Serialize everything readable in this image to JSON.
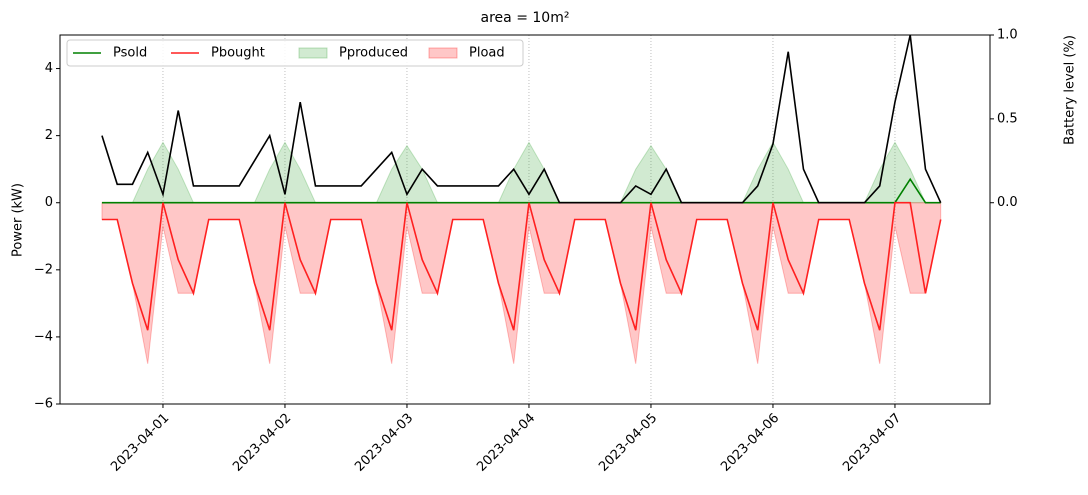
{
  "chart_data": {
    "type": "line",
    "title": "area = 10m²",
    "ylabel": "Power (kW)",
    "y2label": "Battery level (%)",
    "x": [
      -0.5,
      -0.375,
      -0.25,
      -0.125,
      0,
      0.125,
      0.25,
      0.375,
      0.5,
      0.625,
      0.75,
      0.875,
      1,
      1.125,
      1.25,
      1.375,
      1.5,
      1.625,
      1.75,
      1.875,
      2,
      2.125,
      2.25,
      2.375,
      2.5,
      2.625,
      2.75,
      2.875,
      3,
      3.125,
      3.25,
      3.375,
      3.5,
      3.625,
      3.75,
      3.875,
      4,
      4.125,
      4.25,
      4.375,
      4.5,
      4.625,
      4.75,
      4.875,
      5,
      5.125,
      5.25,
      5.375,
      5.5,
      5.625,
      5.75,
      5.875,
      6,
      6.125,
      6.25,
      6.375
    ],
    "xlim": [
      -0.844,
      6.779
    ],
    "xticks": [
      {
        "value": 0,
        "label": "2023-04-01"
      },
      {
        "value": 1,
        "label": "2023-04-02"
      },
      {
        "value": 2,
        "label": "2023-04-03"
      },
      {
        "value": 3,
        "label": "2023-04-04"
      },
      {
        "value": 4,
        "label": "2023-04-05"
      },
      {
        "value": 5,
        "label": "2023-04-06"
      },
      {
        "value": 6,
        "label": "2023-04-07"
      }
    ],
    "xgrid": true,
    "ylim": [
      -6,
      5
    ],
    "yticks": [
      {
        "value": -6,
        "label": "−6"
      },
      {
        "value": -4,
        "label": "−4"
      },
      {
        "value": -2,
        "label": "−2"
      },
      0,
      2,
      4
    ],
    "y2lim": [
      -1.2,
      1.0
    ],
    "y2ticks": [
      {
        "value": 0,
        "label": "0.0"
      },
      {
        "value": 0.5,
        "label": "0.5"
      },
      {
        "value": 1,
        "label": "1.0"
      }
    ],
    "legend": "upper left",
    "series": [
      {
        "name": "Psold",
        "style": "line",
        "color": "#008000",
        "values": [
          0,
          0,
          0,
          0,
          0,
          0,
          0,
          0,
          0,
          0,
          0,
          0,
          0,
          0,
          0,
          0,
          0,
          0,
          0,
          0,
          0,
          0,
          0,
          0,
          0,
          0,
          0,
          0,
          0,
          0,
          0,
          0,
          0,
          0,
          0,
          0,
          0,
          0,
          0,
          0,
          0,
          0,
          0,
          0,
          0,
          0,
          0,
          0,
          0,
          0,
          0,
          0,
          0,
          0.7,
          0,
          0
        ]
      },
      {
        "name": "Pbought",
        "style": "line",
        "color": "#ff2020",
        "values": [
          -0.5,
          -0.5,
          -2.4,
          -3.8,
          0,
          -1.7,
          -2.7,
          -0.5,
          -0.5,
          -0.5,
          -2.4,
          -3.8,
          0,
          -1.7,
          -2.7,
          -0.5,
          -0.5,
          -0.5,
          -2.4,
          -3.8,
          0,
          -1.7,
          -2.7,
          -0.5,
          -0.5,
          -0.5,
          -2.4,
          -3.8,
          0,
          -1.7,
          -2.7,
          -0.5,
          -0.5,
          -0.5,
          -2.4,
          -3.8,
          0,
          -1.7,
          -2.7,
          -0.5,
          -0.5,
          -0.5,
          -2.4,
          -3.8,
          0,
          -1.7,
          -2.7,
          -0.5,
          -0.5,
          -0.5,
          -2.4,
          -3.8,
          0,
          0,
          -2.7,
          -0.5
        ]
      },
      {
        "name": "Pproduced",
        "style": "fill",
        "color": "#2ca02c",
        "values": [
          0,
          0,
          0,
          1.0,
          1.8,
          1.0,
          0,
          0,
          0,
          0,
          0,
          1.0,
          1.8,
          1.0,
          0,
          0,
          0,
          0,
          0,
          1.0,
          1.7,
          1.0,
          0,
          0,
          0,
          0,
          0,
          1.0,
          1.8,
          1.0,
          0,
          0,
          0,
          0,
          0,
          1.0,
          1.7,
          1.0,
          0,
          0,
          0,
          0,
          0,
          1.0,
          1.8,
          1.0,
          0,
          0,
          0,
          0,
          0,
          1.0,
          1.8,
          1.0,
          0,
          0
        ]
      },
      {
        "name": "Pload",
        "style": "fill",
        "color": "#ff0000",
        "values": [
          -0.5,
          -0.5,
          -2.4,
          -4.8,
          -0.7,
          -2.7,
          -2.7,
          -0.5,
          -0.5,
          -0.5,
          -2.4,
          -4.8,
          -0.7,
          -2.7,
          -2.7,
          -0.5,
          -0.5,
          -0.5,
          -2.4,
          -4.8,
          -0.7,
          -2.7,
          -2.7,
          -0.5,
          -0.5,
          -0.5,
          -2.4,
          -4.8,
          -0.7,
          -2.7,
          -2.7,
          -0.5,
          -0.5,
          -0.5,
          -2.4,
          -4.8,
          -0.7,
          -2.7,
          -2.7,
          -0.5,
          -0.5,
          -0.5,
          -2.4,
          -4.8,
          -0.7,
          -2.7,
          -2.7,
          -0.5,
          -0.5,
          -0.5,
          -2.4,
          -4.8,
          -0.7,
          -2.7,
          -2.7,
          -0.5
        ]
      },
      {
        "style": "line",
        "axis": "y2",
        "color": "#000000",
        "values": [
          0.4,
          0.11,
          0.11,
          0.3,
          0.05,
          0.55,
          0.1,
          0.1,
          0.1,
          0.1,
          0.25,
          0.4,
          0.05,
          0.6,
          0.1,
          0.1,
          0.1,
          0.1,
          0.2,
          0.3,
          0.05,
          0.2,
          0.1,
          0.1,
          0.1,
          0.1,
          0.1,
          0.2,
          0.05,
          0.2,
          0,
          0,
          0,
          0,
          0,
          0.1,
          0.05,
          0.2,
          0,
          0,
          0,
          0,
          0,
          0.1,
          0.35,
          0.9,
          0.2,
          0,
          0,
          0,
          0,
          0.1,
          0.6,
          1.0,
          0.2,
          0
        ]
      }
    ]
  }
}
